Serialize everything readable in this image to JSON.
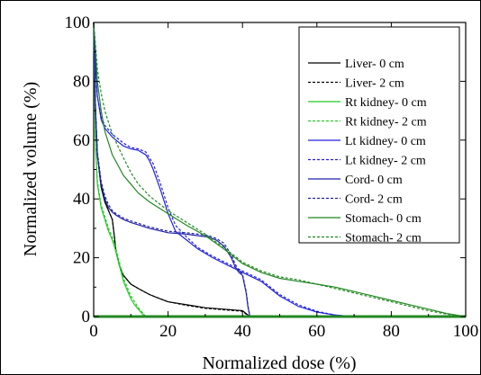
{
  "chart_data": {
    "type": "line",
    "xlabel": "Normalized dose (%)",
    "ylabel": "Normalized volume (%)",
    "xlim": [
      0,
      100
    ],
    "ylim": [
      0,
      100
    ],
    "xticks": [
      "0",
      "20",
      "40",
      "60",
      "80",
      "100"
    ],
    "yticks": [
      "0",
      "20",
      "40",
      "60",
      "80",
      "100"
    ],
    "grid": false,
    "legend_position": "top-right",
    "series": [
      {
        "name": "Liver- 0 cm",
        "color": "#000000",
        "dash": "solid",
        "x": [
          0,
          0.5,
          1,
          2,
          3,
          4,
          5,
          5.5,
          6,
          7,
          8,
          10,
          12,
          15,
          18,
          20,
          25,
          30,
          35,
          38,
          40,
          41,
          42
        ],
        "y": [
          100,
          70,
          55,
          44,
          39,
          36,
          33,
          28,
          22,
          17,
          14,
          11,
          9.5,
          7.5,
          6,
          5,
          4,
          3,
          2.5,
          2.2,
          2.0,
          1.0,
          0
        ]
      },
      {
        "name": "Liver- 2 cm",
        "color": "#000000",
        "dash": "dashed",
        "x": [
          0,
          0.5,
          1,
          2,
          3,
          4,
          5,
          5.5,
          6,
          7,
          8,
          10,
          12,
          15,
          18,
          20,
          25,
          30,
          35,
          38,
          40,
          41,
          42
        ],
        "y": [
          100,
          70,
          55,
          44,
          39,
          36,
          33,
          28,
          22,
          17,
          14,
          11,
          9.5,
          7.5,
          6,
          5,
          3.8,
          2.8,
          2.3,
          2.0,
          1.8,
          0.8,
          0
        ]
      },
      {
        "name": "Rt kidney- 0 cm",
        "color": "#22cc22",
        "dash": "solid",
        "x": [
          0,
          0.5,
          1,
          2,
          3,
          4,
          5,
          6,
          7,
          8,
          9,
          10,
          11,
          12,
          13,
          14
        ],
        "y": [
          100,
          58,
          45,
          37,
          33,
          29,
          26,
          22,
          17,
          12,
          9,
          6,
          4,
          2.5,
          1,
          0
        ]
      },
      {
        "name": "Rt kidney- 2 cm",
        "color": "#22cc22",
        "dash": "dashed",
        "x": [
          0,
          0.5,
          1,
          2,
          3,
          4,
          5,
          6,
          7,
          8,
          9,
          10,
          11,
          12,
          13,
          14
        ],
        "y": [
          100,
          58,
          46,
          38,
          34,
          30,
          27,
          23,
          18,
          13,
          10,
          7,
          5,
          3,
          1.5,
          0
        ]
      },
      {
        "name": "Lt kidney- 0 cm",
        "color": "#2222dd",
        "dash": "solid",
        "x": [
          0,
          0.5,
          1,
          2,
          3,
          5,
          8,
          10,
          12,
          14,
          15,
          16,
          18,
          20,
          22,
          25,
          28,
          32,
          36,
          40,
          45,
          50,
          55,
          60,
          65,
          70
        ],
        "y": [
          100,
          85,
          75,
          67,
          64,
          61,
          58,
          57,
          56.5,
          55,
          53,
          50,
          43,
          35,
          29,
          26,
          23,
          20,
          17.5,
          15,
          12,
          7,
          3.5,
          1.5,
          0.5,
          0
        ]
      },
      {
        "name": "Lt kidney- 2 cm",
        "color": "#2222dd",
        "dash": "dashed",
        "x": [
          0,
          0.5,
          1,
          2,
          3,
          5,
          8,
          10,
          12,
          14,
          15,
          16,
          18,
          20,
          22,
          25,
          28,
          32,
          36,
          40,
          45,
          50,
          55,
          60,
          65,
          70
        ],
        "y": [
          100,
          85,
          75,
          68,
          65,
          62,
          59,
          57.5,
          57,
          56,
          54,
          52,
          45,
          37,
          31,
          27,
          23.5,
          20.5,
          18,
          15.5,
          12.5,
          7.5,
          4,
          1.8,
          0.5,
          0
        ]
      },
      {
        "name": "Cord- 0 cm",
        "color": "#2222aa",
        "dash": "solid",
        "x": [
          0,
          0.5,
          1,
          2,
          3,
          4,
          5,
          6,
          8,
          10,
          15,
          20,
          25,
          28,
          31,
          33,
          35,
          37,
          38,
          39,
          40,
          41,
          41.5,
          42
        ],
        "y": [
          100,
          70,
          55,
          45,
          40,
          37,
          35.5,
          34.5,
          33,
          32,
          30,
          28.5,
          28,
          27.5,
          27,
          26,
          24,
          20,
          17,
          15,
          14,
          8,
          3,
          0
        ]
      },
      {
        "name": "Cord- 2 cm",
        "color": "#2222aa",
        "dash": "dashed",
        "x": [
          0,
          0.5,
          1,
          2,
          3,
          4,
          5,
          6,
          8,
          10,
          15,
          20,
          25,
          28,
          31,
          33,
          35,
          37,
          38,
          39,
          40,
          41,
          41.5,
          42
        ],
        "y": [
          100,
          70,
          56,
          46,
          41,
          38,
          36,
          35,
          33.5,
          32.5,
          30.5,
          29,
          28.5,
          28,
          27.5,
          26.5,
          25,
          21,
          18,
          15.5,
          14.5,
          8.5,
          3.5,
          0
        ]
      },
      {
        "name": "Stomach- 0 cm",
        "color": "#228822",
        "dash": "solid",
        "x": [
          0,
          0.5,
          1,
          2,
          3,
          5,
          8,
          10,
          12,
          15,
          20,
          25,
          30,
          35,
          40,
          45,
          50,
          55,
          60,
          65,
          70,
          75,
          80,
          85,
          90,
          95,
          100
        ],
        "y": [
          100,
          90,
          80,
          70,
          63,
          55,
          48,
          45,
          42,
          39,
          35,
          31,
          27.5,
          23,
          18,
          15,
          13,
          12,
          11,
          10,
          8.5,
          7,
          5.5,
          4,
          2.5,
          1,
          0
        ]
      },
      {
        "name": "Stomach- 2 cm",
        "color": "#228822",
        "dash": "dashed",
        "x": [
          0,
          0.5,
          1,
          2,
          3,
          5,
          8,
          10,
          12,
          15,
          20,
          25,
          30,
          35,
          40,
          45,
          50,
          55,
          60,
          65,
          70,
          75,
          80,
          85,
          90,
          95,
          100
        ],
        "y": [
          100,
          92,
          84,
          76,
          70,
          62,
          54,
          49,
          45,
          41,
          36,
          32,
          28,
          23.5,
          18.5,
          15.5,
          13.5,
          12.5,
          11,
          9.5,
          8,
          6.5,
          5,
          3.5,
          2,
          0.8,
          0
        ]
      }
    ]
  }
}
